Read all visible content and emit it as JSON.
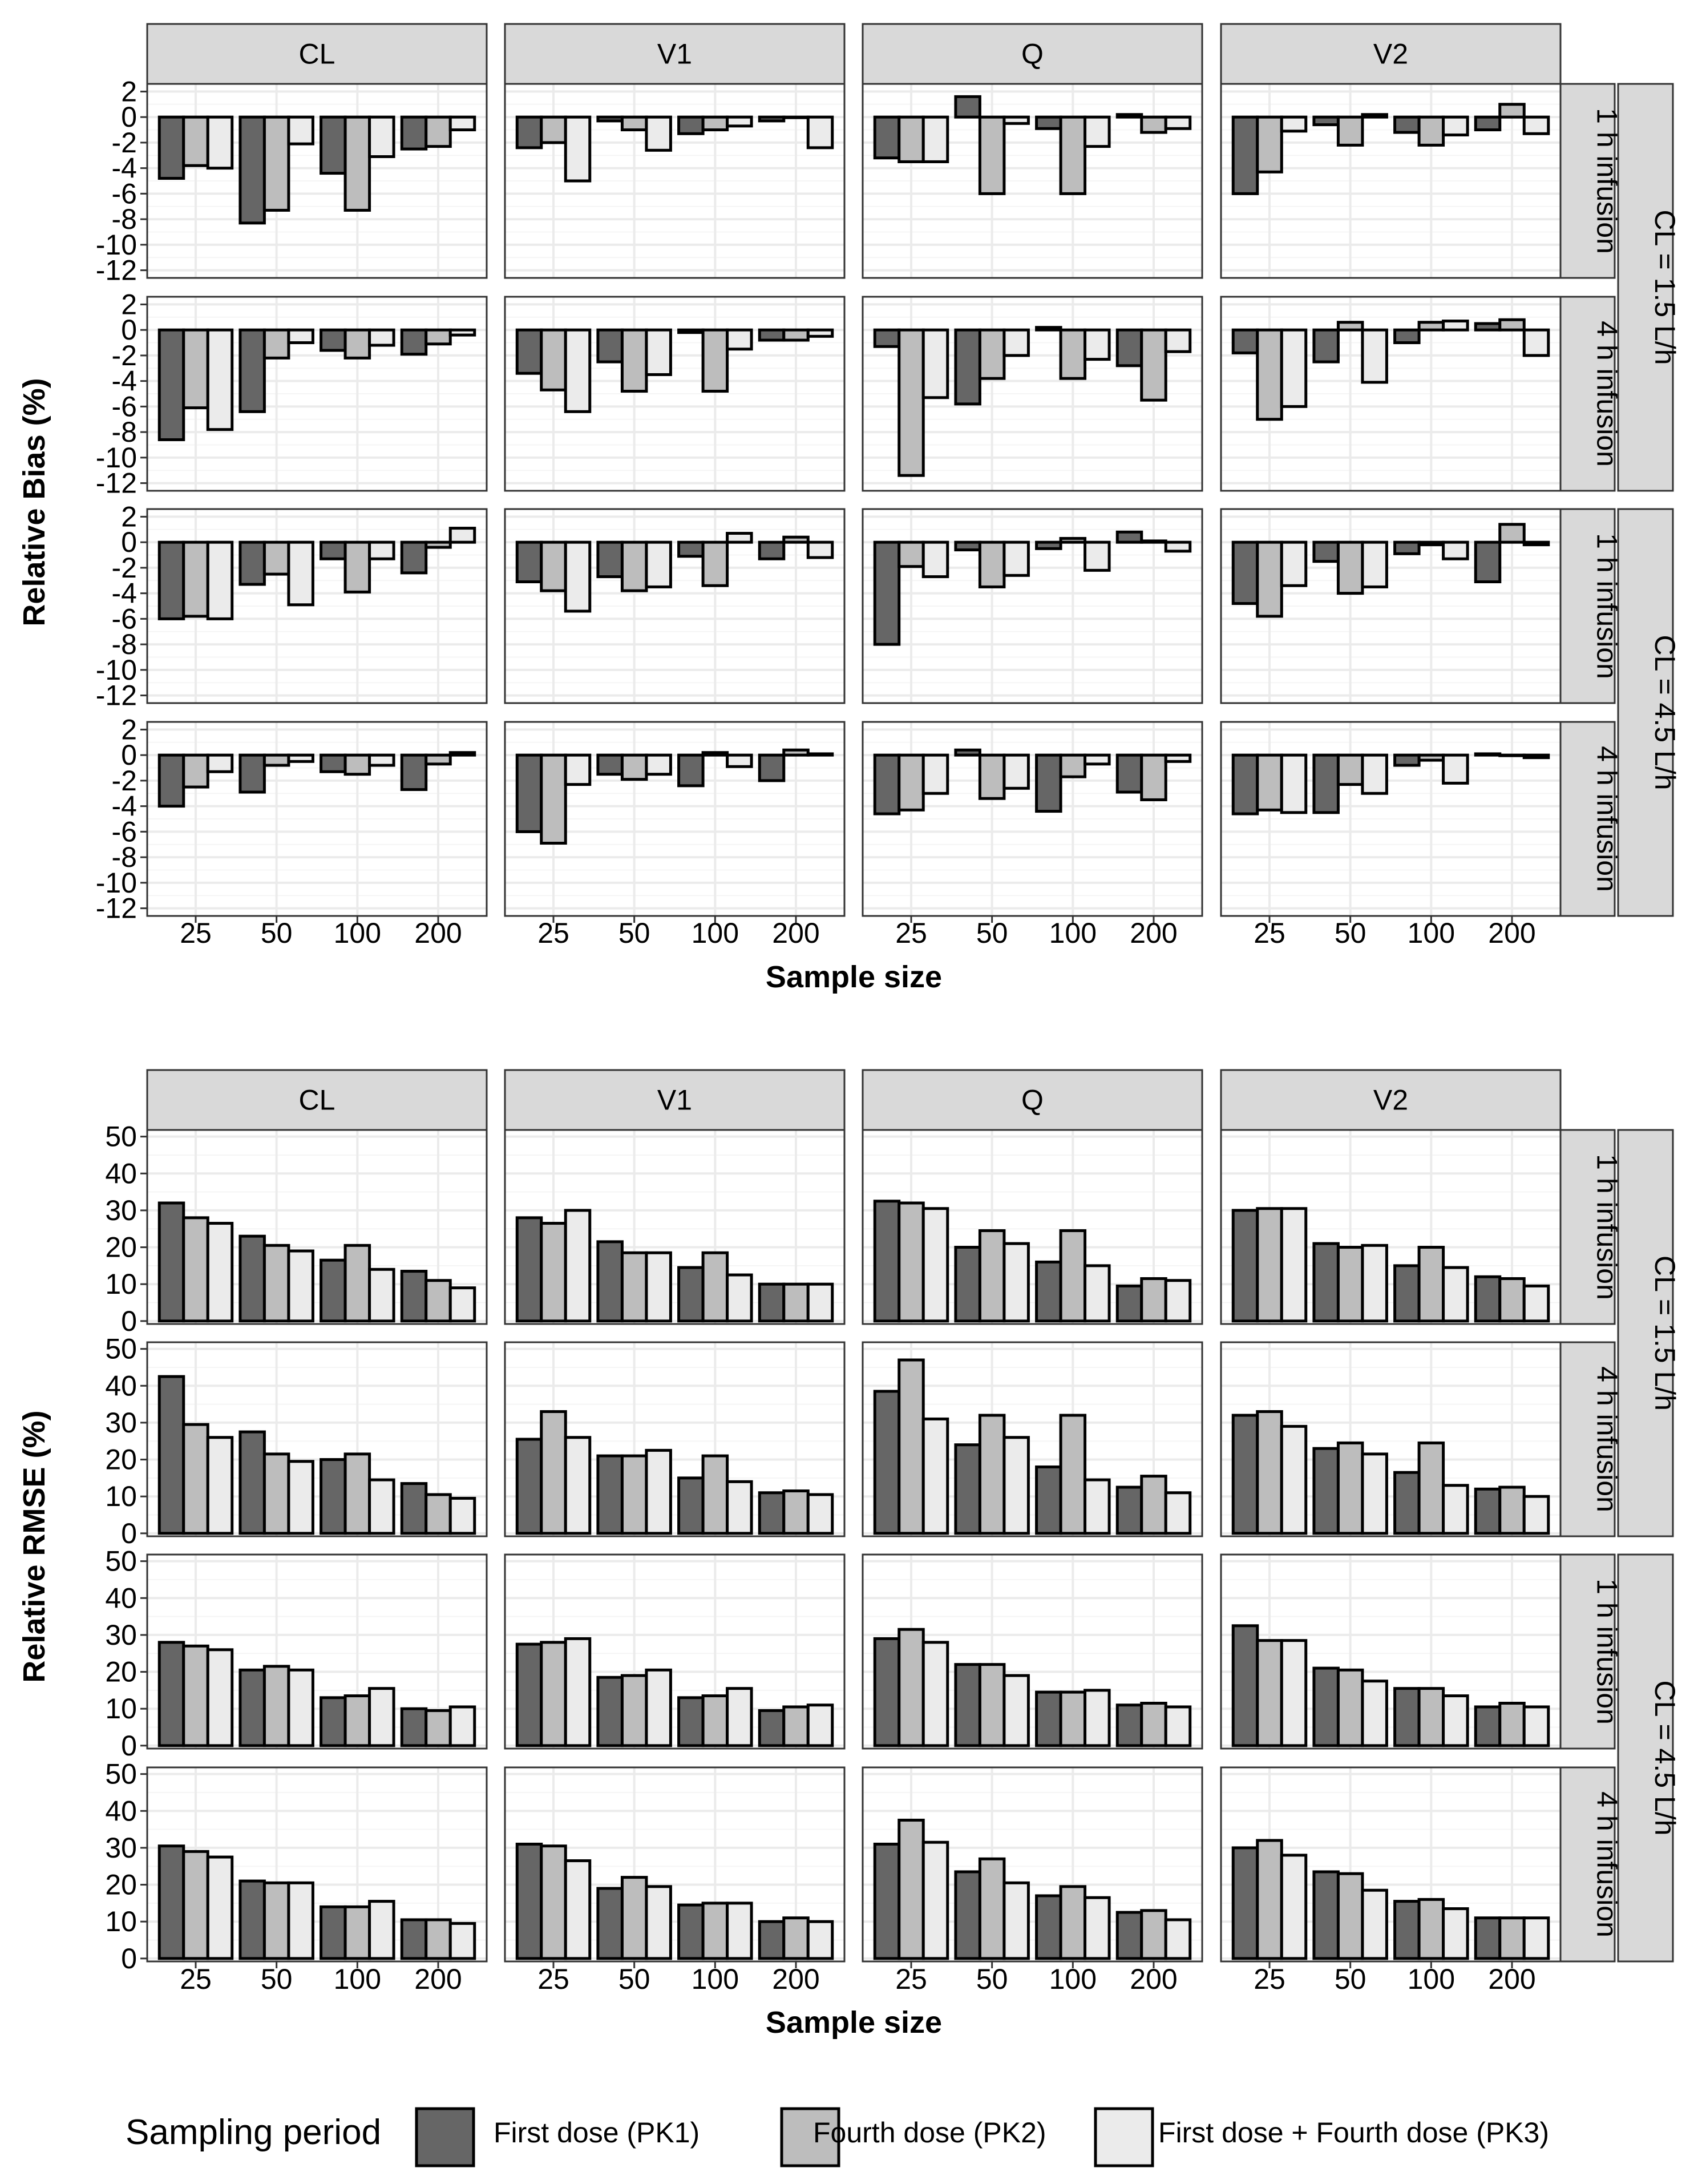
{
  "chart_data": [
    {
      "type": "bar",
      "ylabel": "Relative Bias (%)",
      "xlabel": "Sample size",
      "ylim": [
        -12.6,
        2.6
      ],
      "yticks": [
        2,
        0,
        -2,
        -4,
        -6,
        -8,
        -10,
        -12
      ],
      "ytick_labels": [
        "2",
        "0",
        "-2",
        "-4",
        "-6",
        "-8",
        "-10",
        "-12"
      ],
      "categories": [
        "25",
        "50",
        "100",
        "200"
      ],
      "columns": [
        "CL",
        "V1",
        "Q",
        "V2"
      ],
      "rows": [
        "1 h infusion",
        "4 h infusion",
        "1 h infusion",
        "4 h infusion"
      ],
      "groups": [
        {
          "label": "CL = 1.5 L/h",
          "rows": [
            0,
            1
          ]
        },
        {
          "label": "CL = 4.5 L/h",
          "rows": [
            2,
            3
          ]
        }
      ],
      "series_names": [
        "First dose (PK1)",
        "Fourth dose (PK2)",
        "First dose + Fourth dose (PK3)"
      ],
      "values": [
        [
          [
            [
              -4.8,
              -3.8,
              -4.0
            ],
            [
              -8.3,
              -7.3,
              -2.1
            ],
            [
              -4.4,
              -7.3,
              -3.1
            ],
            [
              -2.5,
              -2.3,
              -1.0
            ]
          ],
          [
            [
              -2.4,
              -2.0,
              -5.0
            ],
            [
              -0.3,
              -1.0,
              -2.6
            ],
            [
              -1.3,
              -1.0,
              -0.7
            ],
            [
              -0.3,
              0.0,
              -2.4
            ]
          ],
          [
            [
              -3.2,
              -3.5,
              -3.5
            ],
            [
              1.6,
              -6.0,
              -0.5
            ],
            [
              -0.9,
              -6.0,
              -2.3
            ],
            [
              0.2,
              -1.2,
              -0.9
            ]
          ],
          [
            [
              -6.0,
              -4.3,
              -1.1
            ],
            [
              -0.6,
              -2.2,
              0.2
            ],
            [
              -1.2,
              -2.2,
              -1.4
            ],
            [
              -1.0,
              1.0,
              -1.3
            ]
          ]
        ],
        [
          [
            [
              -8.6,
              -6.1,
              -7.8
            ],
            [
              -6.4,
              -2.2,
              -1.0
            ],
            [
              -1.6,
              -2.2,
              -1.2
            ],
            [
              -1.9,
              -1.1,
              -0.4
            ]
          ],
          [
            [
              -3.4,
              -4.7,
              -6.4
            ],
            [
              -2.5,
              -4.8,
              -3.5
            ],
            [
              -0.2,
              -4.8,
              -1.5
            ],
            [
              -0.8,
              -0.8,
              -0.5
            ]
          ],
          [
            [
              -1.3,
              -11.4,
              -5.3
            ],
            [
              -5.8,
              -3.8,
              -2.0
            ],
            [
              0.2,
              -3.8,
              -2.3
            ],
            [
              -2.8,
              -5.5,
              -1.7
            ]
          ],
          [
            [
              -1.8,
              -7.0,
              -6.0
            ],
            [
              -2.5,
              0.6,
              -4.1
            ],
            [
              -1.0,
              0.6,
              0.7
            ],
            [
              0.5,
              0.8,
              -2.0
            ]
          ]
        ],
        [
          [
            [
              -6.0,
              -5.8,
              -6.0
            ],
            [
              -3.3,
              -2.5,
              -4.9
            ],
            [
              -1.3,
              -3.9,
              -1.3
            ],
            [
              -2.4,
              -0.4,
              1.1
            ]
          ],
          [
            [
              -3.1,
              -3.8,
              -5.4
            ],
            [
              -2.7,
              -3.8,
              -3.5
            ],
            [
              -1.1,
              -3.4,
              0.7
            ],
            [
              -1.3,
              0.4,
              -1.2
            ]
          ],
          [
            [
              -8.0,
              -1.9,
              -2.7
            ],
            [
              -0.6,
              -3.5,
              -2.6
            ],
            [
              -0.5,
              0.3,
              -2.2
            ],
            [
              0.8,
              0.1,
              -0.7
            ]
          ],
          [
            [
              -4.8,
              -5.8,
              -3.4
            ],
            [
              -1.5,
              -4.0,
              -3.5
            ],
            [
              -0.9,
              -0.2,
              -1.3
            ],
            [
              -3.1,
              1.4,
              -0.2
            ]
          ]
        ],
        [
          [
            [
              -4.0,
              -2.5,
              -1.3
            ],
            [
              -2.9,
              -0.8,
              -0.5
            ],
            [
              -1.3,
              -1.5,
              -0.8
            ],
            [
              -2.7,
              -0.7,
              0.2
            ]
          ],
          [
            [
              -6.0,
              -6.9,
              -2.3
            ],
            [
              -1.5,
              -1.9,
              -1.5
            ],
            [
              -2.4,
              0.2,
              -0.9
            ],
            [
              -2.0,
              0.4,
              0.1
            ]
          ],
          [
            [
              -4.6,
              -4.3,
              -3.0
            ],
            [
              0.4,
              -3.4,
              -2.6
            ],
            [
              -4.4,
              -1.7,
              -0.7
            ],
            [
              -2.9,
              -3.5,
              -0.5
            ]
          ],
          [
            [
              -4.6,
              -4.3,
              -4.5
            ],
            [
              -4.5,
              -2.3,
              -3.0
            ],
            [
              -0.8,
              -0.4,
              -2.2
            ],
            [
              0.1,
              0.0,
              -0.2
            ]
          ]
        ]
      ]
    },
    {
      "type": "bar",
      "ylabel": "Relative RMSE (%)",
      "xlabel": "Sample size",
      "ylim": [
        -0.8,
        51.8
      ],
      "yticks": [
        50,
        40,
        30,
        20,
        10,
        0
      ],
      "ytick_labels": [
        "50",
        "40",
        "30",
        "20",
        "10",
        "0"
      ],
      "categories": [
        "25",
        "50",
        "100",
        "200"
      ],
      "columns": [
        "CL",
        "V1",
        "Q",
        "V2"
      ],
      "rows": [
        "1 h infusion",
        "4 h infusion",
        "1 h infusion",
        "4 h infusion"
      ],
      "groups": [
        {
          "label": "CL = 1.5 L/h",
          "rows": [
            0,
            1
          ]
        },
        {
          "label": "CL = 4.5 L/h",
          "rows": [
            2,
            3
          ]
        }
      ],
      "series_names": [
        "First dose (PK1)",
        "Fourth dose (PK2)",
        "First dose + Fourth dose (PK3)"
      ],
      "values": [
        [
          [
            [
              32,
              28,
              26.5
            ],
            [
              23,
              20.5,
              19
            ],
            [
              16.5,
              20.5,
              14
            ],
            [
              13.5,
              11,
              9
            ]
          ],
          [
            [
              28,
              26.5,
              30
            ],
            [
              21.5,
              18.5,
              18.5
            ],
            [
              14.5,
              18.5,
              12.5
            ],
            [
              10,
              10,
              10
            ]
          ],
          [
            [
              32.5,
              32,
              30.5
            ],
            [
              20,
              24.5,
              21
            ],
            [
              16,
              24.5,
              15
            ],
            [
              9.5,
              11.5,
              11
            ]
          ],
          [
            [
              30,
              30.5,
              30.5
            ],
            [
              21,
              20,
              20.5
            ],
            [
              15,
              20,
              14.5
            ],
            [
              12,
              11.5,
              9.5
            ]
          ]
        ],
        [
          [
            [
              42.5,
              29.5,
              26
            ],
            [
              27.5,
              21.5,
              19.5
            ],
            [
              20,
              21.5,
              14.5
            ],
            [
              13.5,
              10.5,
              9.5
            ]
          ],
          [
            [
              25.5,
              33,
              26
            ],
            [
              21,
              21,
              22.5
            ],
            [
              15,
              21,
              14
            ],
            [
              11,
              11.5,
              10.5
            ]
          ],
          [
            [
              38.5,
              47,
              31
            ],
            [
              24,
              32,
              26
            ],
            [
              18,
              32,
              14.5
            ],
            [
              12.5,
              15.5,
              11
            ]
          ],
          [
            [
              32,
              33,
              29
            ],
            [
              23,
              24.5,
              21.5
            ],
            [
              16.5,
              24.5,
              13
            ],
            [
              12,
              12.5,
              10
            ]
          ]
        ],
        [
          [
            [
              28,
              27,
              26
            ],
            [
              20.5,
              21.5,
              20.5
            ],
            [
              13,
              13.5,
              15.5
            ],
            [
              10,
              9.5,
              10.5
            ]
          ],
          [
            [
              27.5,
              28,
              29
            ],
            [
              18.5,
              19,
              20.5
            ],
            [
              13,
              13.5,
              15.5
            ],
            [
              9.5,
              10.5,
              11
            ]
          ],
          [
            [
              29,
              31.5,
              28
            ],
            [
              22,
              22,
              19
            ],
            [
              14.5,
              14.5,
              15
            ],
            [
              11,
              11.5,
              10.5
            ]
          ],
          [
            [
              32.5,
              28.5,
              28.5
            ],
            [
              21,
              20.5,
              17.5
            ],
            [
              15.5,
              15.5,
              13.5
            ],
            [
              10.5,
              11.5,
              10.5
            ]
          ]
        ],
        [
          [
            [
              30.5,
              29,
              27.5
            ],
            [
              21,
              20.5,
              20.5
            ],
            [
              14,
              14,
              15.5
            ],
            [
              10.5,
              10.5,
              9.5
            ]
          ],
          [
            [
              31,
              30.5,
              26.5
            ],
            [
              19,
              22,
              19.5
            ],
            [
              14.5,
              15,
              15
            ],
            [
              10,
              11,
              10
            ]
          ],
          [
            [
              31,
              37.5,
              31.5
            ],
            [
              23.5,
              27,
              20.5
            ],
            [
              17,
              19.5,
              16.5
            ],
            [
              12.5,
              13,
              10.5
            ]
          ],
          [
            [
              30,
              32,
              28
            ],
            [
              23.5,
              23,
              18.5
            ],
            [
              15.5,
              16,
              13.5
            ],
            [
              11,
              11,
              11
            ]
          ]
        ]
      ]
    }
  ],
  "legend": {
    "title": "Sampling period",
    "items": [
      "First dose (PK1)",
      "Fourth dose (PK2)",
      "First dose + Fourth dose (PK3)"
    ],
    "colors": [
      "#666666",
      "#bdbdbd",
      "#ebebeb"
    ]
  }
}
